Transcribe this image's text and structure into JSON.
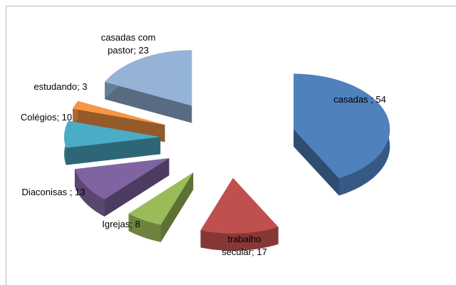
{
  "chart_data": {
    "type": "pie3d",
    "value_labels": [
      "casadas ; 54",
      "trabalho secular; 17",
      "Igrejas; 8",
      "Diaconisas ; 13",
      "Colégios; 10",
      "estudando; 3",
      "casadas com pastor; 23"
    ],
    "values": [
      54,
      17,
      8,
      13,
      10,
      3,
      23
    ],
    "colors": [
      "#4f81bd",
      "#c0504d",
      "#9bbb59",
      "#8064a2",
      "#4bacc6",
      "#f79646",
      "#95b3d7"
    ]
  }
}
